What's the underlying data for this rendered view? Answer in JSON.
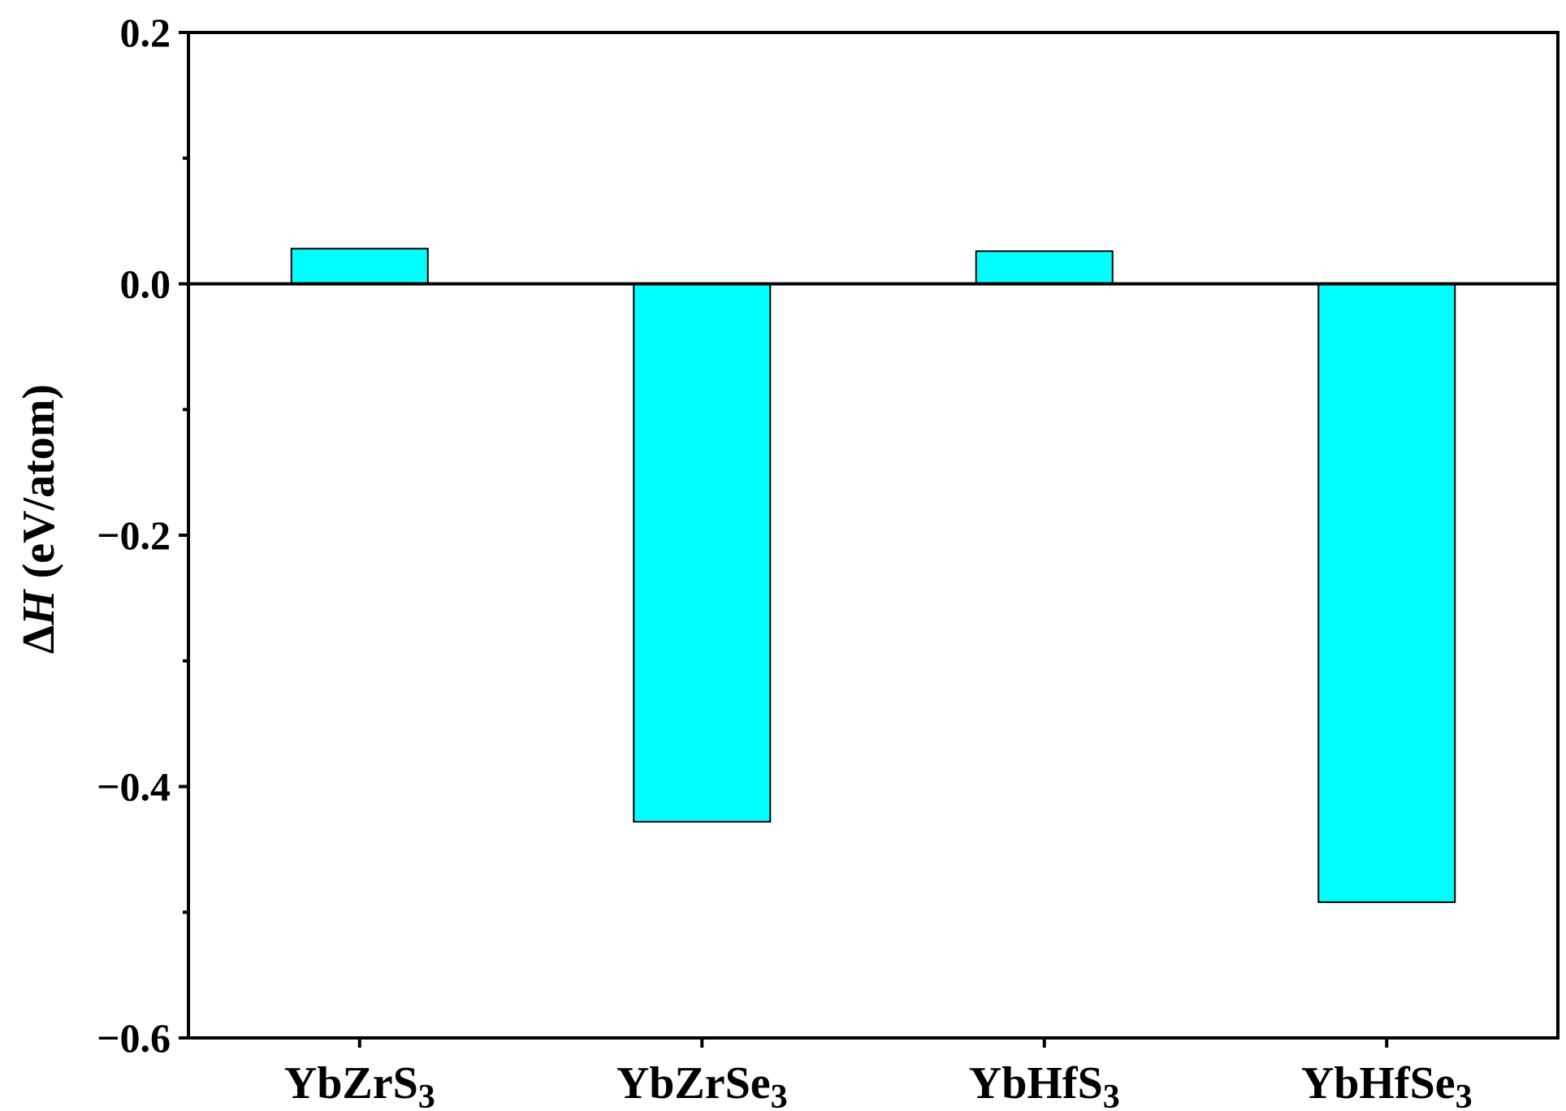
{
  "chart_data": {
    "type": "bar",
    "title": "",
    "xlabel": "",
    "ylabel": {
      "delta": "Δ",
      "symbol": "H",
      "unit": " (eV/atom)"
    },
    "categories": [
      {
        "base": "YbZrS",
        "sub": "3"
      },
      {
        "base": "YbZrSe",
        "sub": "3"
      },
      {
        "base": "YbHfS",
        "sub": "3"
      },
      {
        "base": "YbHfSe",
        "sub": "3"
      }
    ],
    "series": [
      {
        "values": [
          0.028,
          -0.428,
          0.026,
          -0.492
        ]
      }
    ],
    "ylim": [
      -0.6,
      0.2
    ],
    "yticks_major": [
      0.2,
      0.0,
      -0.2,
      -0.4,
      -0.6
    ],
    "ytick_labels": [
      "0.2",
      "0.0",
      "−0.2",
      "−0.4",
      "−0.6"
    ],
    "yticks_minor": [
      0.1,
      -0.1,
      -0.3,
      -0.5
    ],
    "zero_line": true,
    "grid": false,
    "colors": {
      "bar_fill": "#00FFFF",
      "bar_stroke": "#000000",
      "axis": "#000000"
    }
  }
}
